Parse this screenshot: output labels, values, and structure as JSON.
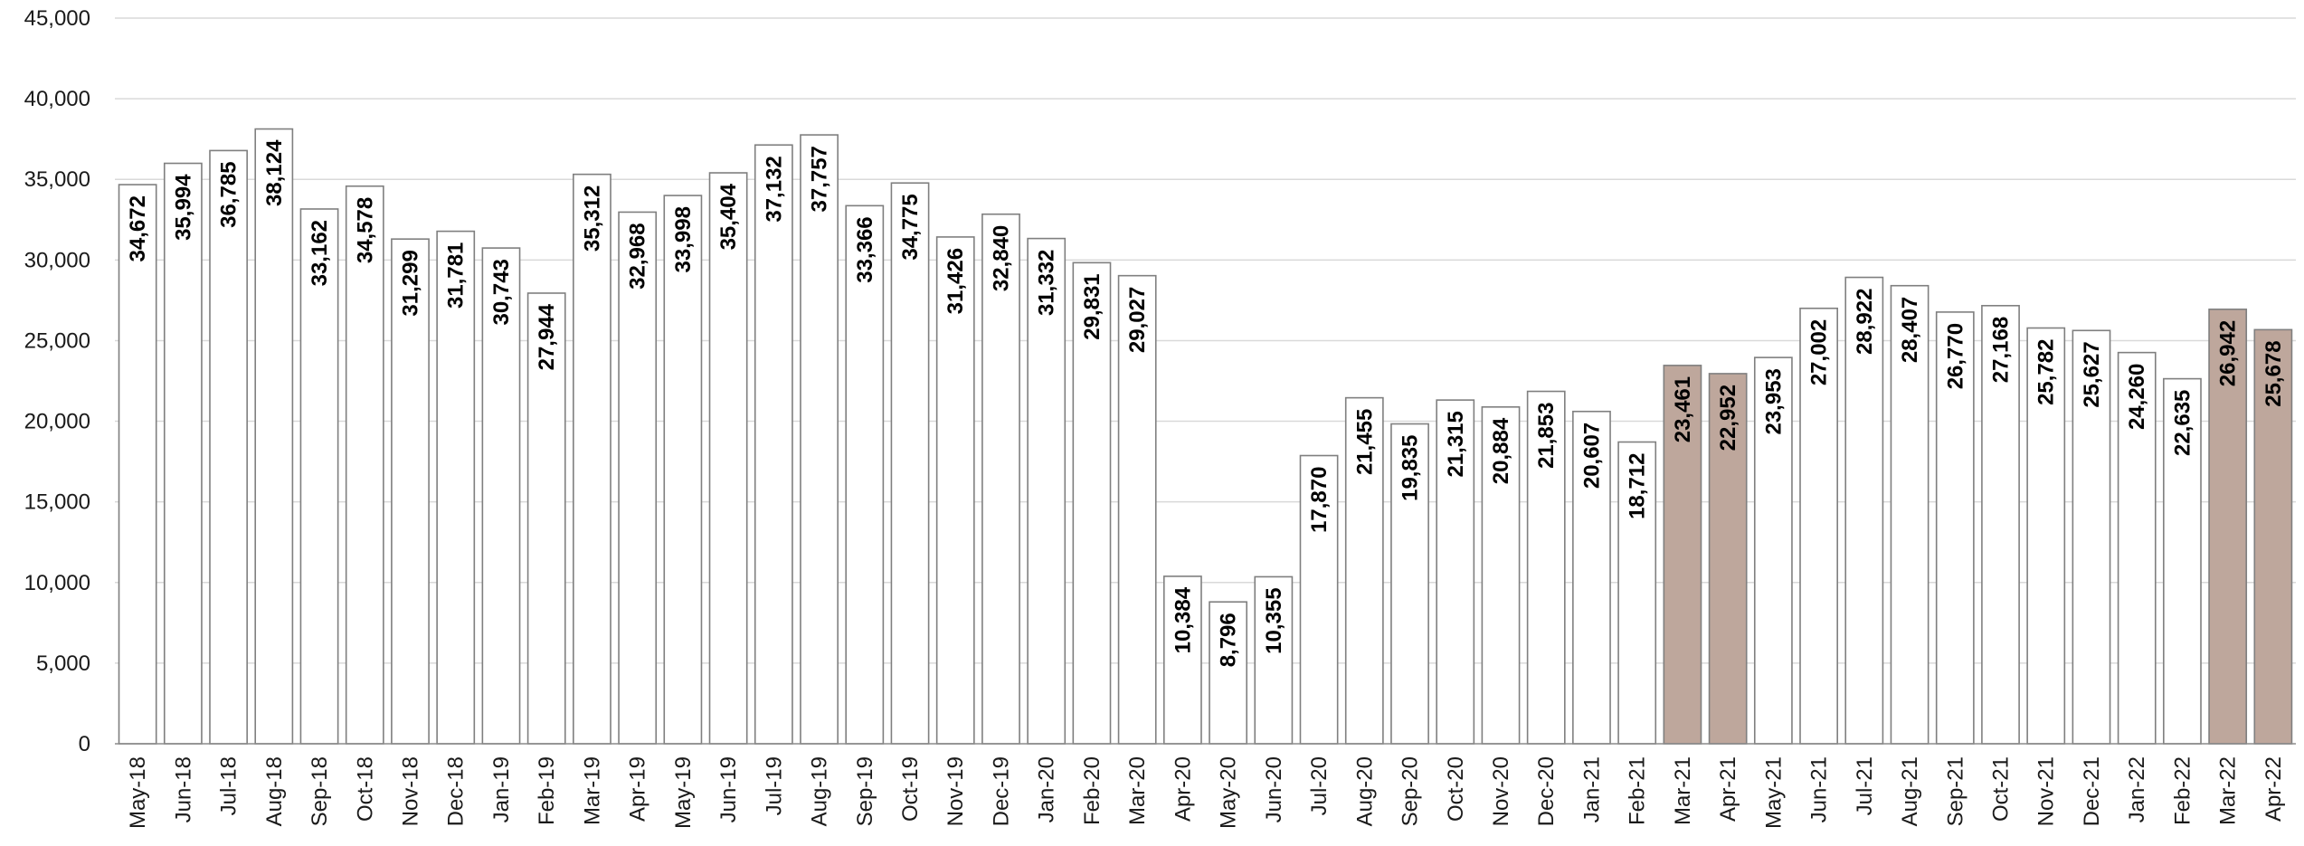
{
  "chart_data": {
    "type": "bar",
    "categories": [
      "May-18",
      "Jun-18",
      "Jul-18",
      "Aug-18",
      "Sep-18",
      "Oct-18",
      "Nov-18",
      "Dec-18",
      "Jan-19",
      "Feb-19",
      "Mar-19",
      "Apr-19",
      "May-19",
      "Jun-19",
      "Jul-19",
      "Aug-19",
      "Sep-19",
      "Oct-19",
      "Nov-19",
      "Dec-19",
      "Jan-20",
      "Feb-20",
      "Mar-20",
      "Apr-20",
      "May-20",
      "Jun-20",
      "Jul-20",
      "Aug-20",
      "Sep-20",
      "Oct-20",
      "Nov-20",
      "Dec-20",
      "Jan-21",
      "Feb-21",
      "Mar-21",
      "Apr-21",
      "May-21",
      "Jun-21",
      "Jul-21",
      "Aug-21",
      "Sep-21",
      "Oct-21",
      "Nov-21",
      "Dec-21",
      "Jan-22",
      "Feb-22",
      "Mar-22",
      "Apr-22"
    ],
    "values": [
      34672,
      35994,
      36785,
      38124,
      33162,
      34578,
      31299,
      31781,
      30743,
      27944,
      35312,
      32968,
      33998,
      35404,
      37132,
      37757,
      33366,
      34775,
      31426,
      32840,
      31332,
      29831,
      29027,
      10384,
      8796,
      10355,
      17870,
      21455,
      19835,
      21315,
      20884,
      21853,
      20607,
      18712,
      23461,
      22952,
      23953,
      27002,
      28922,
      28407,
      26770,
      27168,
      25782,
      25627,
      24260,
      22635,
      26942,
      25678
    ],
    "value_labels": [
      "34,672",
      "35,994",
      "36,785",
      "38,124",
      "33,162",
      "34,578",
      "31,299",
      "31,781",
      "30,743",
      "27,944",
      "35,312",
      "32,968",
      "33,998",
      "35,404",
      "37,132",
      "37,757",
      "33,366",
      "34,775",
      "31,426",
      "32,840",
      "31,332",
      "29,831",
      "29,027",
      "10,384",
      "8,796",
      "10,355",
      "17,870",
      "21,455",
      "19,835",
      "21,315",
      "20,884",
      "21,853",
      "20,607",
      "18,712",
      "23,461",
      "22,952",
      "23,953",
      "27,002",
      "28,922",
      "28,407",
      "26,770",
      "27,168",
      "25,782",
      "25,627",
      "24,260",
      "22,635",
      "26,942",
      "25,678"
    ],
    "highlighted_categories": [
      "Mar-21",
      "Apr-21",
      "Mar-22",
      "Apr-22"
    ],
    "title": "",
    "xlabel": "",
    "ylabel": "",
    "ylim": [
      0,
      45000
    ],
    "y_ticks": [
      0,
      5000,
      10000,
      15000,
      20000,
      25000,
      30000,
      35000,
      40000,
      45000
    ],
    "y_tick_labels": [
      "0",
      "5,000",
      "10,000",
      "15,000",
      "20,000",
      "25,000",
      "30,000",
      "35,000",
      "40,000",
      "45,000"
    ],
    "grid": true,
    "legend": "none",
    "colors": {
      "bar_fill": "#ffffff",
      "bar_stroke": "#7f7f7f",
      "highlight_fill": "#bea79c",
      "highlight_stroke": "#7f7f7f",
      "grid": "#d9d9d9"
    }
  }
}
